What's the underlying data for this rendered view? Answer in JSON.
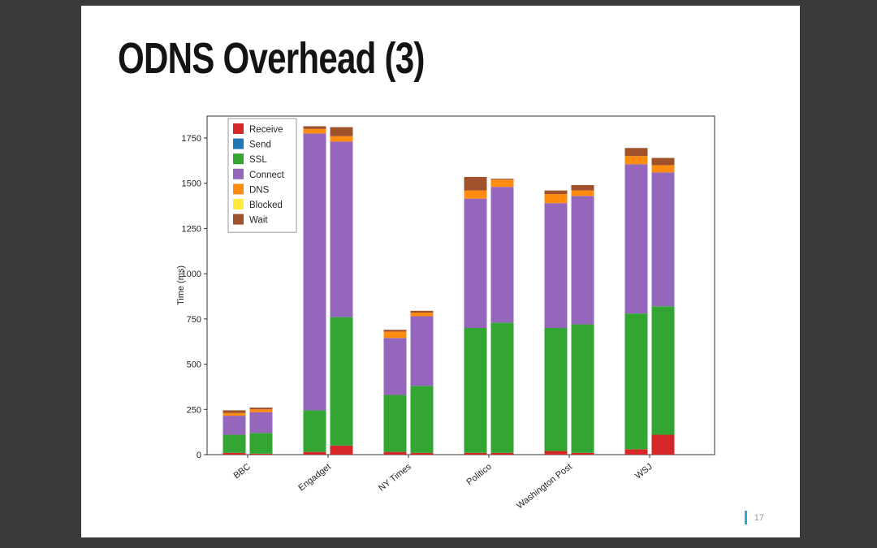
{
  "slide": {
    "title": "ODNS Overhead (3)",
    "page_number": "17"
  },
  "chart_data": {
    "type": "bar",
    "stacked": true,
    "title": "",
    "xlabel": "",
    "ylabel": "Time (ms)",
    "ylim": [
      0,
      1871
    ],
    "yticks": [
      0,
      250,
      500,
      750,
      1000,
      1250,
      1500,
      1750
    ],
    "grid": false,
    "legend_position": "upper-left",
    "categories": [
      "BBC",
      "Engadget",
      "NY Times",
      "Politico",
      "Washington Post",
      "WSJ"
    ],
    "bars_per_category": 2,
    "series": [
      {
        "name": "Receive",
        "color": "#d62728",
        "values": [
          [
            10,
            5
          ],
          [
            15,
            50
          ],
          [
            15,
            10
          ],
          [
            10,
            10
          ],
          [
            20,
            10
          ],
          [
            30,
            110
          ]
        ]
      },
      {
        "name": "Send",
        "color": "#1f77b4",
        "values": [
          [
            0,
            0
          ],
          [
            0,
            0
          ],
          [
            0,
            0
          ],
          [
            0,
            0
          ],
          [
            0,
            0
          ],
          [
            0,
            0
          ]
        ]
      },
      {
        "name": "SSL",
        "color": "#33a532",
        "values": [
          [
            100,
            115
          ],
          [
            230,
            710
          ],
          [
            315,
            370
          ],
          [
            690,
            720
          ],
          [
            680,
            710
          ],
          [
            750,
            710
          ]
        ]
      },
      {
        "name": "Connect",
        "color": "#9467bd",
        "values": [
          [
            105,
            115
          ],
          [
            1530,
            970
          ],
          [
            315,
            385
          ],
          [
            715,
            750
          ],
          [
            690,
            710
          ],
          [
            825,
            740
          ]
        ]
      },
      {
        "name": "DNS",
        "color": "#ff8c0e",
        "values": [
          [
            15,
            15
          ],
          [
            25,
            30
          ],
          [
            35,
            20
          ],
          [
            45,
            40
          ],
          [
            50,
            30
          ],
          [
            45,
            40
          ]
        ]
      },
      {
        "name": "Blocked",
        "color": "#ffeb3b",
        "values": [
          [
            0,
            0
          ],
          [
            0,
            0
          ],
          [
            0,
            0
          ],
          [
            0,
            0
          ],
          [
            0,
            0
          ],
          [
            0,
            0
          ]
        ]
      },
      {
        "name": "Wait",
        "color": "#a0522d",
        "values": [
          [
            15,
            10
          ],
          [
            15,
            50
          ],
          [
            10,
            10
          ],
          [
            75,
            5
          ],
          [
            20,
            30
          ],
          [
            45,
            40
          ]
        ]
      }
    ]
  }
}
